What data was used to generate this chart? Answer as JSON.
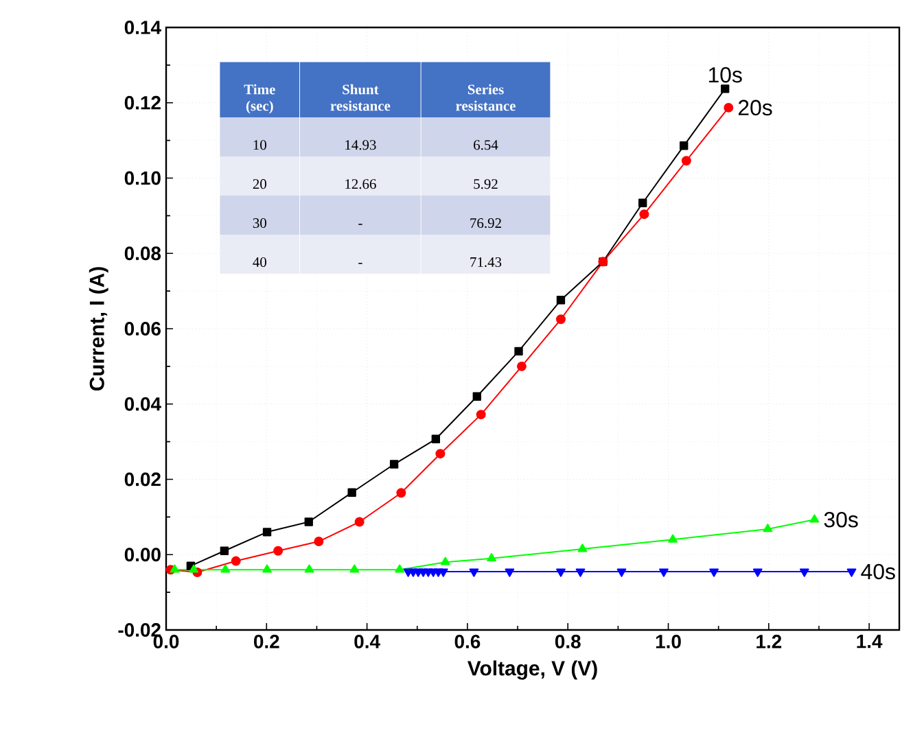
{
  "chart_data": {
    "type": "line",
    "xlabel": "Voltage, V (V)",
    "ylabel": "Current, I (A)",
    "xlim": [
      0,
      1.46
    ],
    "ylim": [
      -0.02,
      0.14
    ],
    "xticks": [
      {
        "value": 0,
        "label": "0.0"
      },
      {
        "value": 0.2,
        "label": "0.2"
      },
      {
        "value": 0.4,
        "label": "0.4"
      },
      {
        "value": 0.6,
        "label": "0.6"
      },
      {
        "value": 0.8,
        "label": "0.8"
      },
      {
        "value": 1.0,
        "label": "1.0"
      },
      {
        "value": 1.2,
        "label": "1.2"
      },
      {
        "value": 1.4,
        "label": "1.4"
      }
    ],
    "yticks": [
      {
        "value": -0.02,
        "label": "-0.02"
      },
      {
        "value": 0,
        "label": "0.00"
      },
      {
        "value": 0.02,
        "label": "0.02"
      },
      {
        "value": 0.04,
        "label": "0.04"
      },
      {
        "value": 0.06,
        "label": "0.06"
      },
      {
        "value": 0.08,
        "label": "0.08"
      },
      {
        "value": 0.1,
        "label": "0.10"
      },
      {
        "value": 0.12,
        "label": "0.12"
      },
      {
        "value": 0.14,
        "label": "0.14"
      }
    ],
    "grid": true,
    "series": [
      {
        "name": "10s",
        "color": "#000000",
        "marker": "square",
        "x": [
          0.049,
          0.116,
          0.201,
          0.284,
          0.37,
          0.454,
          0.537,
          0.619,
          0.702,
          0.786,
          0.87,
          0.949,
          1.031,
          1.113
        ],
        "values": [
          -0.003,
          0.001,
          0.006,
          0.0087,
          0.0165,
          0.024,
          0.0307,
          0.042,
          0.054,
          0.0676,
          0.0778,
          0.0934,
          0.1086,
          0.1237
        ]
      },
      {
        "name": "20s",
        "color": "#ff0000",
        "marker": "circle",
        "x": [
          0.009,
          0.062,
          0.139,
          0.223,
          0.304,
          0.385,
          0.468,
          0.546,
          0.627,
          0.708,
          0.786,
          0.87,
          0.952,
          1.036,
          1.12
        ],
        "values": [
          -0.004,
          -0.0047,
          -0.0017,
          0.001,
          0.0035,
          0.0087,
          0.0164,
          0.0268,
          0.0372,
          0.05,
          0.0625,
          0.0778,
          0.0904,
          0.1046,
          0.1187
        ]
      },
      {
        "name": "30s",
        "color": "#00ff00",
        "marker": "triangle",
        "x": [
          0.017,
          0.055,
          0.118,
          0.201,
          0.285,
          0.375,
          0.465,
          0.556,
          0.648,
          0.829,
          1.009,
          1.198,
          1.291
        ],
        "values": [
          -0.004,
          -0.004,
          -0.004,
          -0.004,
          -0.004,
          -0.004,
          -0.004,
          -0.002,
          -0.001,
          0.0015,
          0.004,
          0.0068,
          0.0093
        ]
      },
      {
        "name": "40s",
        "color": "#0000ff",
        "marker": "triangle down",
        "x": [
          0.482,
          0.492,
          0.502,
          0.512,
          0.522,
          0.532,
          0.542,
          0.552,
          0.613,
          0.684,
          0.786,
          0.825,
          0.907,
          0.991,
          1.091,
          1.178,
          1.271,
          1.365
        ],
        "values": [
          -0.0045,
          -0.0045,
          -0.0045,
          -0.0045,
          -0.0045,
          -0.0045,
          -0.0045,
          -0.0045,
          -0.0045,
          -0.0045,
          -0.0045,
          -0.0045,
          -0.0045,
          -0.0045,
          -0.0045,
          -0.0045,
          -0.0045,
          -0.0045
        ]
      }
    ],
    "annotations": [
      "Time (sec)",
      "Shunt resistance",
      "Series resistance",
      "10",
      "14.93",
      "6.54",
      "20",
      "12.66",
      "5.92",
      "30",
      "-",
      "76.92",
      "40",
      "-",
      "71.43"
    ]
  }
}
